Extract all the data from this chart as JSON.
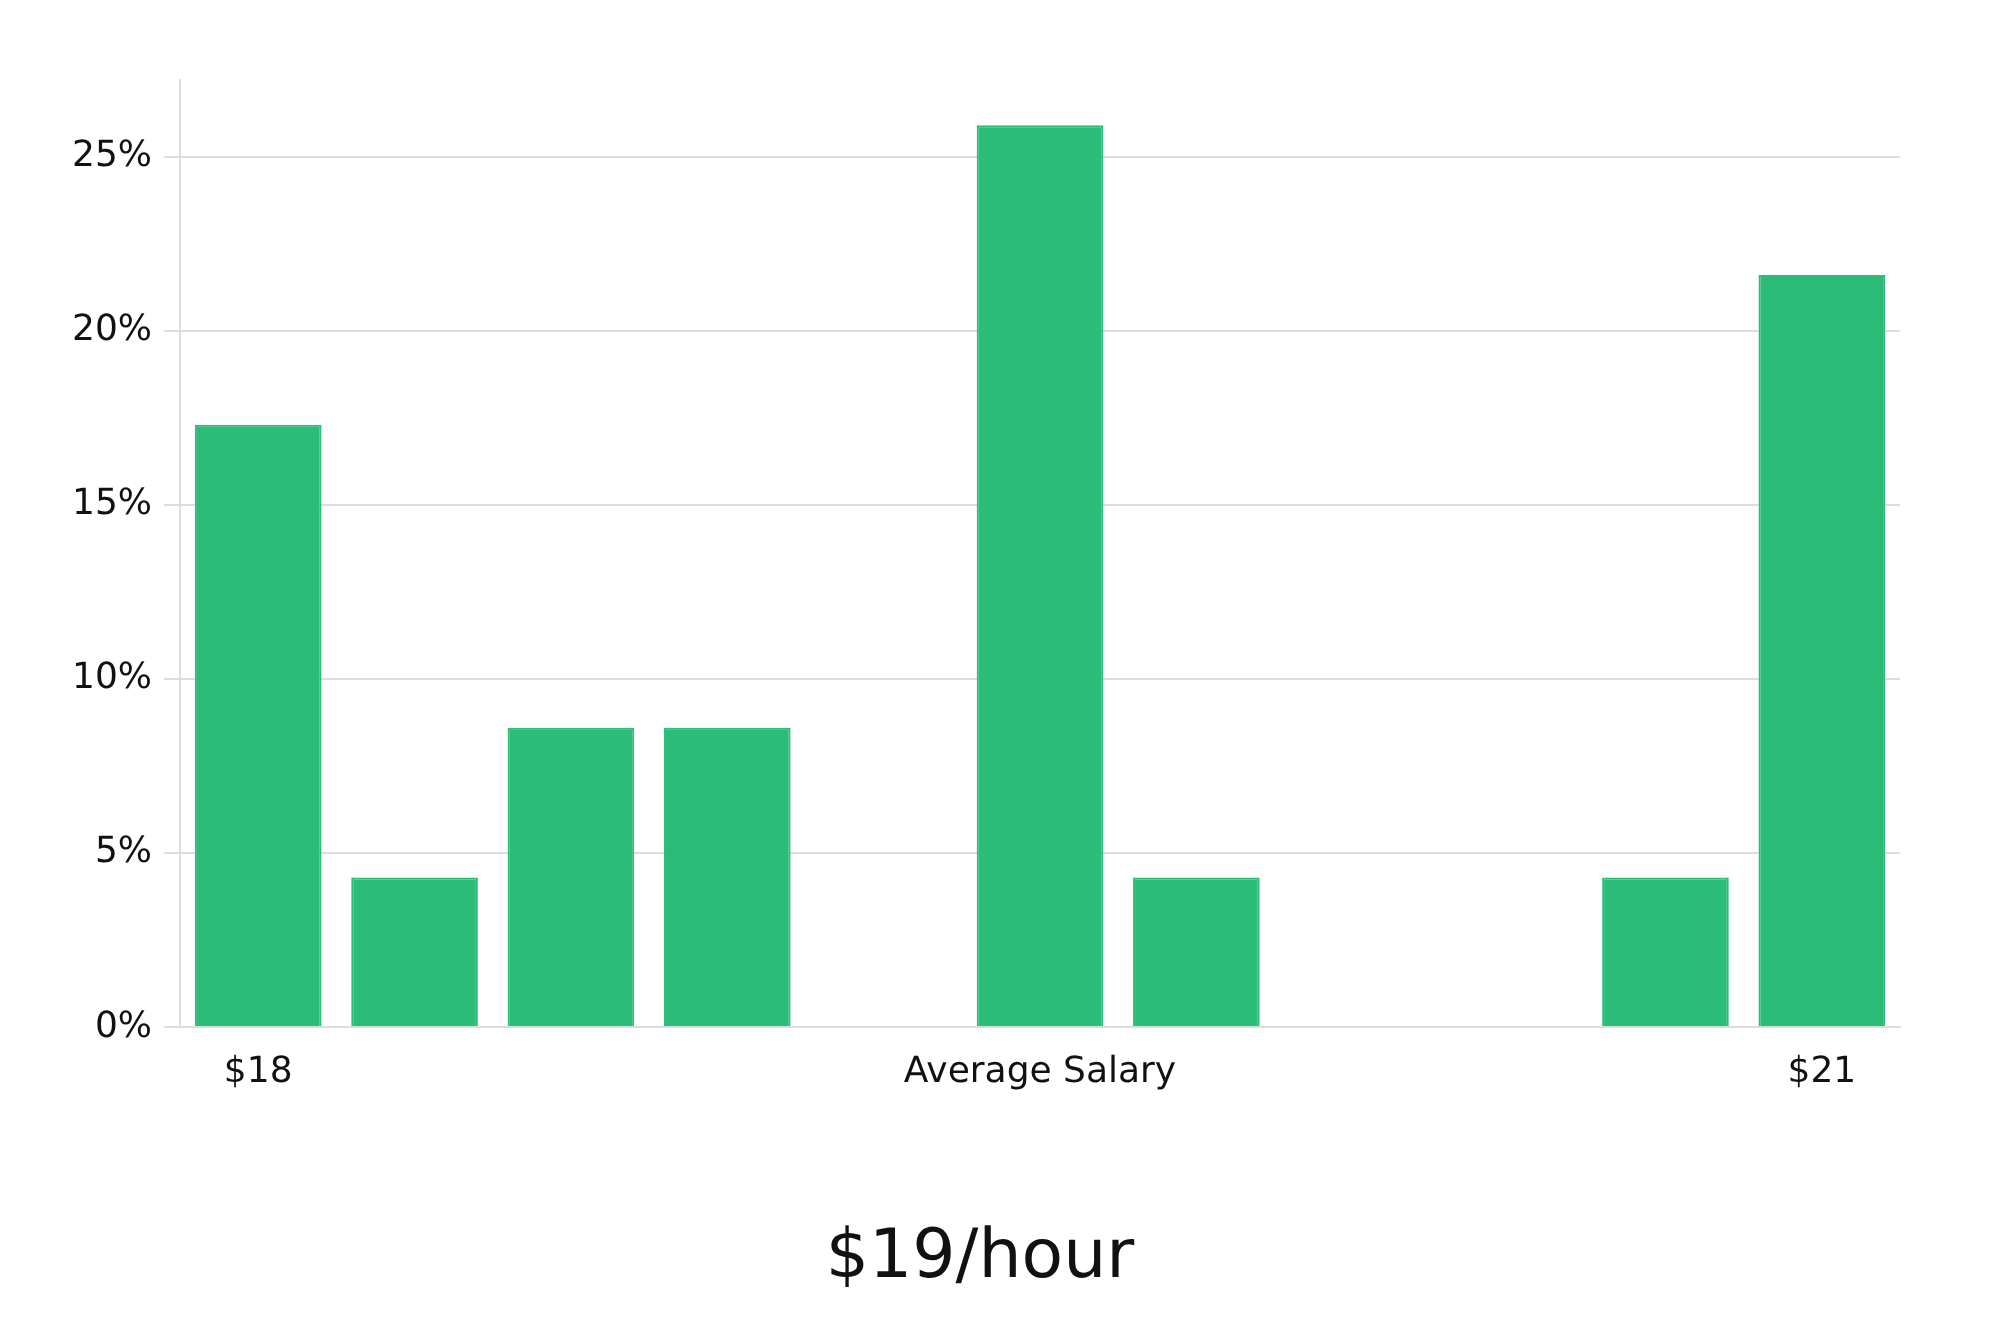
{
  "chart_data": {
    "type": "bar",
    "title": "$19/hour",
    "categories": [
      "$18",
      null,
      null,
      null,
      null,
      "Average Salary",
      null,
      null,
      null,
      null,
      "$21"
    ],
    "values": [
      17.3,
      4.3,
      8.6,
      8.6,
      0,
      25.9,
      4.3,
      0,
      0,
      4.3,
      21.6
    ],
    "color": "#2bbd77",
    "ylim": [
      0,
      27.2
    ],
    "yticks": [
      {
        "value": 0,
        "label": "0%"
      },
      {
        "value": 5,
        "label": "5%"
      },
      {
        "value": 10,
        "label": "10%"
      },
      {
        "value": 15,
        "label": "15%"
      },
      {
        "value": 20,
        "label": "20%"
      },
      {
        "value": 25,
        "label": "25%"
      }
    ],
    "grid": "y",
    "legend": false
  }
}
